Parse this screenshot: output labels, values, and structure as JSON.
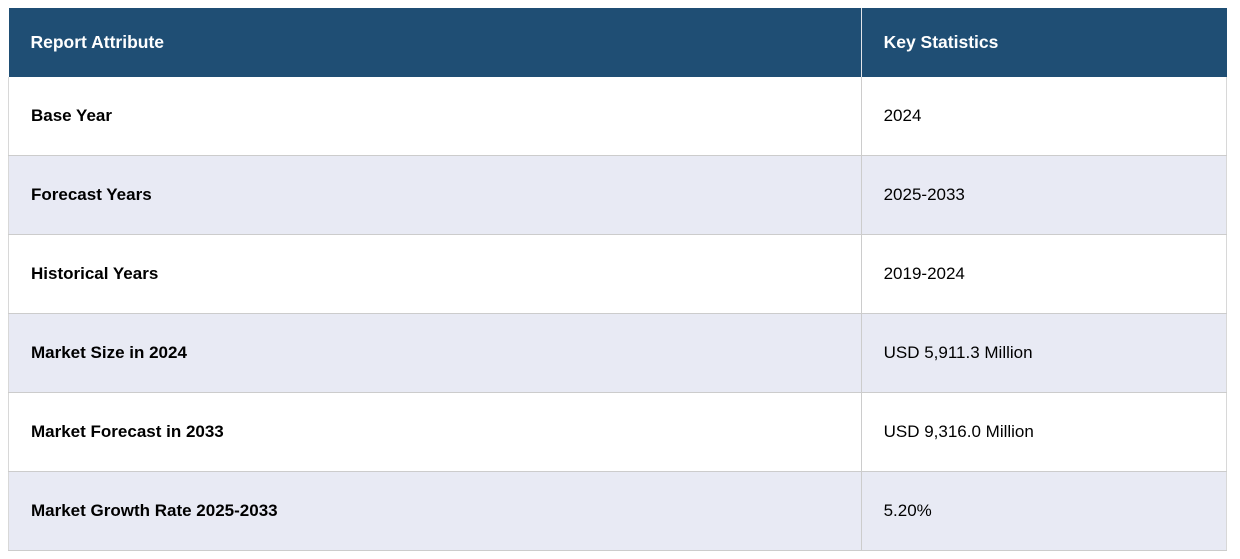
{
  "chart_data": {
    "type": "table",
    "columns": [
      "Report Attribute",
      "Key Statistics"
    ],
    "rows": [
      [
        "Base Year",
        "2024"
      ],
      [
        "Forecast Years",
        "2025-2033"
      ],
      [
        "Historical Years",
        "2019-2024"
      ],
      [
        "Market Size in 2024",
        "USD 5,911.3 Million"
      ],
      [
        "Market Forecast in 2033",
        "USD 9,316.0 Million"
      ],
      [
        "Market Growth Rate 2025-2033",
        "5.20%"
      ]
    ]
  },
  "colors": {
    "header_background": "#1F4E74",
    "header_text": "#FFFFFF",
    "row_alternate_background": "#E8EAF4",
    "row_background": "#FFFFFF",
    "body_text": "#000000",
    "border": "#CCCCCC"
  }
}
